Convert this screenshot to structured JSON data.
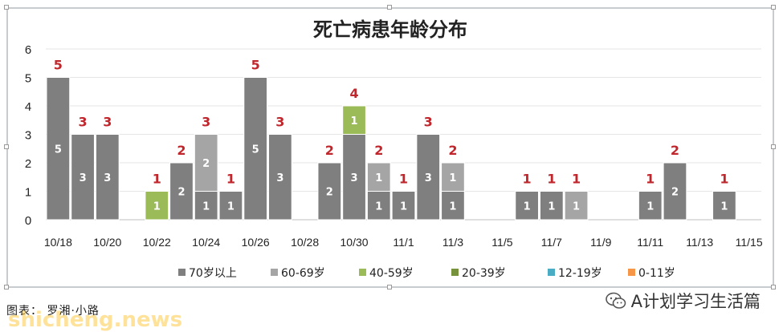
{
  "chart_data": {
    "type": "bar",
    "stacked": true,
    "title": "死亡病患年龄分布",
    "categories": [
      "10/18",
      "10/19",
      "10/20",
      "10/21",
      "10/22",
      "10/23",
      "10/24",
      "10/25",
      "10/26",
      "10/27",
      "10/28",
      "10/29",
      "10/30",
      "10/31",
      "11/1",
      "11/2",
      "11/3",
      "11/4",
      "11/5",
      "11/6",
      "11/7",
      "11/8",
      "11/9",
      "11/10",
      "11/11",
      "11/12",
      "11/13",
      "11/14",
      "11/15"
    ],
    "tick_labels": [
      "10/18",
      "10/20",
      "10/22",
      "10/24",
      "10/26",
      "10/28",
      "10/30",
      "11/1",
      "11/3",
      "11/5",
      "11/7",
      "11/9",
      "11/11",
      "11/13",
      "11/15"
    ],
    "series": [
      {
        "name": "70岁以上",
        "color": "#7f7f7f",
        "values": [
          5,
          3,
          3,
          0,
          0,
          2,
          1,
          1,
          5,
          3,
          0,
          2,
          3,
          1,
          1,
          3,
          1,
          0,
          0,
          1,
          1,
          0,
          0,
          0,
          1,
          2,
          0,
          1,
          0
        ]
      },
      {
        "name": "60-69岁",
        "color": "#a5a5a5",
        "values": [
          0,
          0,
          0,
          0,
          0,
          0,
          2,
          0,
          0,
          0,
          0,
          0,
          0,
          1,
          0,
          0,
          1,
          0,
          0,
          0,
          0,
          1,
          0,
          0,
          0,
          0,
          0,
          0,
          0
        ]
      },
      {
        "name": "40-59岁",
        "color": "#9bbb59",
        "values": [
          0,
          0,
          0,
          0,
          1,
          0,
          0,
          0,
          0,
          0,
          0,
          0,
          1,
          0,
          0,
          0,
          0,
          0,
          0,
          0,
          0,
          0,
          0,
          0,
          0,
          0,
          0,
          0,
          0
        ]
      },
      {
        "name": "20-39岁",
        "color": "#76923c",
        "values": [
          0,
          0,
          0,
          0,
          0,
          0,
          0,
          0,
          0,
          0,
          0,
          0,
          0,
          0,
          0,
          0,
          0,
          0,
          0,
          0,
          0,
          0,
          0,
          0,
          0,
          0,
          0,
          0,
          0
        ]
      },
      {
        "name": "12-19岁",
        "color": "#4bacc6",
        "values": [
          0,
          0,
          0,
          0,
          0,
          0,
          0,
          0,
          0,
          0,
          0,
          0,
          0,
          0,
          0,
          0,
          0,
          0,
          0,
          0,
          0,
          0,
          0,
          0,
          0,
          0,
          0,
          0,
          0
        ]
      },
      {
        "name": "0-11岁",
        "color": "#f79646",
        "values": [
          0,
          0,
          0,
          0,
          0,
          0,
          0,
          0,
          0,
          0,
          0,
          0,
          0,
          0,
          0,
          0,
          0,
          0,
          0,
          0,
          0,
          0,
          0,
          0,
          0,
          0,
          0,
          0,
          0
        ]
      }
    ],
    "ylim": [
      0,
      6
    ],
    "yticks": [
      0,
      1,
      2,
      3,
      4,
      5,
      6
    ],
    "total_label_color": "#c0272d",
    "grid": true,
    "legend_position": "bottom"
  },
  "footer": {
    "caption": "图表： 罗湘·小路",
    "watermark": "shicheng.news",
    "account": "A计划学习生活篇"
  }
}
